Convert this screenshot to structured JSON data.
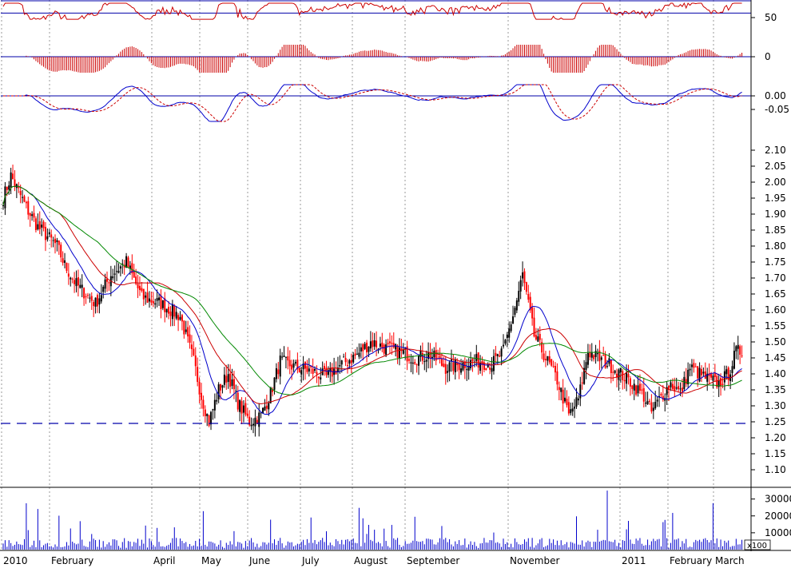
{
  "chart_data": {
    "type": "stock-chart",
    "x_months": [
      "2010",
      "February",
      "April",
      "May",
      "June",
      "July",
      "August",
      "September",
      "November",
      "2011",
      "February",
      "March"
    ],
    "colors": {
      "up": "#000000",
      "down": "#ff0000",
      "ma_short": "#0000cc",
      "ma_mid": "#cc0000",
      "ma_long": "#008800",
      "ref": "#0000aa",
      "grid": "#999999",
      "volume": "#0000cc",
      "rsi": "#cc0000",
      "osc": "#cc0000"
    },
    "price": {
      "ylim": [
        1.05,
        2.15
      ],
      "ticks": [
        "2.10",
        "2.05",
        "2.00",
        "1.95",
        "1.90",
        "1.85",
        "1.80",
        "1.75",
        "1.70",
        "1.65",
        "1.60",
        "1.55",
        "1.50",
        "1.45",
        "1.40",
        "1.35",
        "1.30",
        "1.25",
        "1.20",
        "1.15",
        "1.10"
      ],
      "support_level": 1.245,
      "keypoints": [
        [
          0,
          1.95
        ],
        [
          4,
          2.02
        ],
        [
          12,
          1.92
        ],
        [
          18,
          1.86
        ],
        [
          28,
          1.8
        ],
        [
          32,
          1.74
        ],
        [
          38,
          1.68
        ],
        [
          48,
          1.62
        ],
        [
          56,
          1.71
        ],
        [
          64,
          1.75
        ],
        [
          72,
          1.64
        ],
        [
          82,
          1.62
        ],
        [
          92,
          1.58
        ],
        [
          99,
          1.44
        ],
        [
          103,
          1.33
        ],
        [
          107,
          1.25
        ],
        [
          112,
          1.35
        ],
        [
          117,
          1.4
        ],
        [
          122,
          1.31
        ],
        [
          128,
          1.25
        ],
        [
          134,
          1.27
        ],
        [
          139,
          1.34
        ],
        [
          144,
          1.44
        ],
        [
          152,
          1.42
        ],
        [
          160,
          1.41
        ],
        [
          168,
          1.39
        ],
        [
          176,
          1.43
        ],
        [
          184,
          1.46
        ],
        [
          191,
          1.5
        ],
        [
          199,
          1.48
        ],
        [
          206,
          1.47
        ],
        [
          214,
          1.45
        ],
        [
          222,
          1.46
        ],
        [
          230,
          1.42
        ],
        [
          238,
          1.43
        ],
        [
          246,
          1.44
        ],
        [
          254,
          1.43
        ],
        [
          260,
          1.47
        ],
        [
          267,
          1.63
        ],
        [
          270,
          1.71
        ],
        [
          276,
          1.52
        ],
        [
          282,
          1.45
        ],
        [
          288,
          1.38
        ],
        [
          294,
          1.27
        ],
        [
          299,
          1.32
        ],
        [
          304,
          1.47
        ],
        [
          309,
          1.45
        ],
        [
          315,
          1.43
        ],
        [
          321,
          1.4
        ],
        [
          327,
          1.37
        ],
        [
          333,
          1.33
        ],
        [
          337,
          1.28
        ],
        [
          341,
          1.32
        ],
        [
          347,
          1.37
        ],
        [
          352,
          1.34
        ],
        [
          357,
          1.42
        ],
        [
          362,
          1.4
        ],
        [
          367,
          1.38
        ],
        [
          372,
          1.37
        ],
        [
          377,
          1.4
        ],
        [
          381,
          1.47
        ]
      ]
    },
    "rsi": {
      "tick_labels": [
        "50"
      ],
      "ref_levels": [
        70,
        50
      ]
    },
    "histogram": {
      "tick_labels": [
        "0"
      ]
    },
    "macd": {
      "tick_labels": [
        "0.00",
        "-0.05"
      ]
    },
    "volume": {
      "tick_labels": [
        "30000",
        "20000",
        "10000"
      ],
      "multiplier": "x100",
      "ylim": [
        0,
        36000
      ]
    }
  }
}
